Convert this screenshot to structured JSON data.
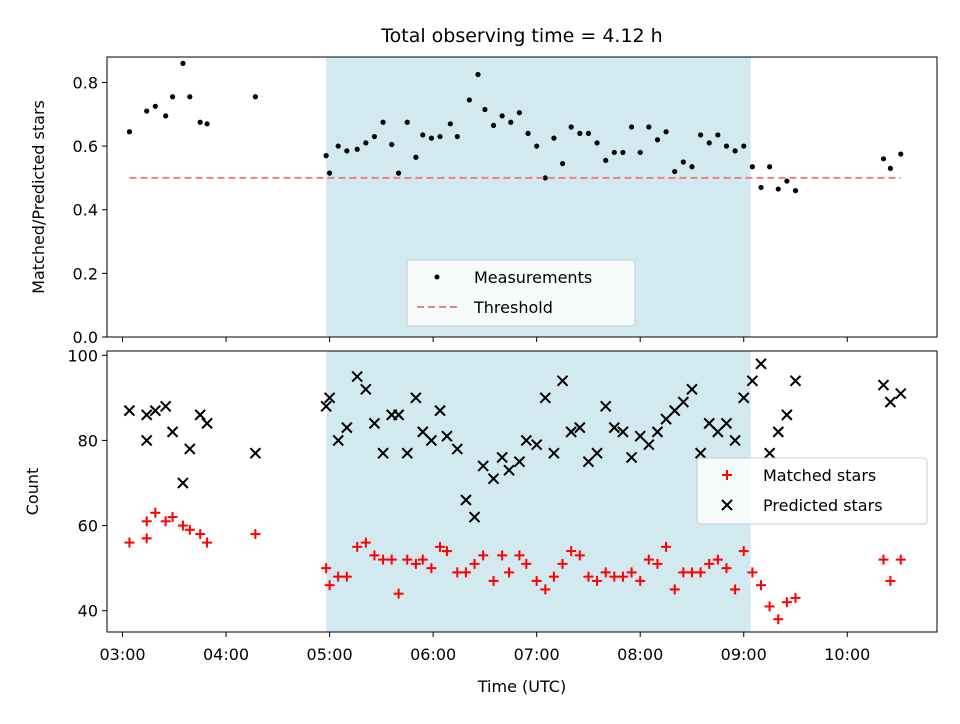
{
  "chart_data": [
    {
      "type": "scatter",
      "title": "Total observing time = 4.12 h",
      "ylabel": "Matched/Predicted stars",
      "xlabel": "",
      "ylim": [
        0,
        0.88
      ],
      "xlim": [
        "02:51",
        "10:52"
      ],
      "yticks": [
        "0.0",
        "0.2",
        "0.4",
        "0.6",
        "0.8"
      ],
      "shaded_interval": [
        "04:58",
        "09:04"
      ],
      "shade_color": "#d2e9f0",
      "legend_position": "lower center",
      "series": [
        {
          "name": "Measurements",
          "color": "#000000",
          "marker": "dot",
          "points": [
            [
              "03:04",
              0.645
            ],
            [
              "03:14",
              0.71
            ],
            [
              "03:19",
              0.725
            ],
            [
              "03:25",
              0.695
            ],
            [
              "03:29",
              0.755
            ],
            [
              "03:35",
              0.86
            ],
            [
              "03:39",
              0.755
            ],
            [
              "03:45",
              0.675
            ],
            [
              "03:49",
              0.67
            ],
            [
              "04:17",
              0.755
            ],
            [
              "04:58",
              0.57
            ],
            [
              "05:00",
              0.515
            ],
            [
              "05:05",
              0.6
            ],
            [
              "05:10",
              0.585
            ],
            [
              "05:16",
              0.59
            ],
            [
              "05:21",
              0.61
            ],
            [
              "05:26",
              0.63
            ],
            [
              "05:31",
              0.675
            ],
            [
              "05:36",
              0.605
            ],
            [
              "05:40",
              0.515
            ],
            [
              "05:45",
              0.675
            ],
            [
              "05:50",
              0.565
            ],
            [
              "05:54",
              0.635
            ],
            [
              "05:59",
              0.625
            ],
            [
              "06:04",
              0.63
            ],
            [
              "06:10",
              0.67
            ],
            [
              "06:14",
              0.63
            ],
            [
              "06:21",
              0.745
            ],
            [
              "06:26",
              0.825
            ],
            [
              "06:30",
              0.715
            ],
            [
              "06:35",
              0.665
            ],
            [
              "06:40",
              0.695
            ],
            [
              "06:45",
              0.675
            ],
            [
              "06:50",
              0.705
            ],
            [
              "06:55",
              0.64
            ],
            [
              "07:00",
              0.6
            ],
            [
              "07:05",
              0.5
            ],
            [
              "07:10",
              0.625
            ],
            [
              "07:15",
              0.545
            ],
            [
              "07:20",
              0.66
            ],
            [
              "07:25",
              0.64
            ],
            [
              "07:30",
              0.64
            ],
            [
              "07:35",
              0.61
            ],
            [
              "07:40",
              0.555
            ],
            [
              "07:45",
              0.58
            ],
            [
              "07:50",
              0.58
            ],
            [
              "07:55",
              0.66
            ],
            [
              "08:00",
              0.58
            ],
            [
              "08:05",
              0.66
            ],
            [
              "08:10",
              0.62
            ],
            [
              "08:15",
              0.645
            ],
            [
              "08:20",
              0.52
            ],
            [
              "08:25",
              0.55
            ],
            [
              "08:30",
              0.535
            ],
            [
              "08:35",
              0.635
            ],
            [
              "08:40",
              0.61
            ],
            [
              "08:45",
              0.635
            ],
            [
              "08:50",
              0.6
            ],
            [
              "08:55",
              0.585
            ],
            [
              "09:00",
              0.6
            ],
            [
              "09:05",
              0.535
            ],
            [
              "09:10",
              0.47
            ],
            [
              "09:15",
              0.535
            ],
            [
              "09:20",
              0.465
            ],
            [
              "09:25",
              0.49
            ],
            [
              "09:30",
              0.46
            ],
            [
              "10:21",
              0.56
            ],
            [
              "10:25",
              0.53
            ],
            [
              "10:31",
              0.575
            ]
          ]
        },
        {
          "name": "Threshold",
          "color": "#f08080",
          "style": "dashed",
          "points": [
            [
              "03:04",
              0.5
            ],
            [
              "10:31",
              0.5
            ]
          ]
        }
      ]
    },
    {
      "type": "scatter",
      "title": "",
      "ylabel": "Count",
      "xlabel": "Time (UTC)",
      "ylim": [
        35,
        101
      ],
      "xlim": [
        "02:51",
        "10:52"
      ],
      "yticks": [
        "40",
        "60",
        "80",
        "100"
      ],
      "xticks": [
        "03:00",
        "04:00",
        "05:00",
        "06:00",
        "07:00",
        "08:00",
        "09:00",
        "10:00"
      ],
      "shaded_interval": [
        "04:58",
        "09:04"
      ],
      "shade_color": "#d2e9f0",
      "legend_position": "center right",
      "series": [
        {
          "name": "Matched stars",
          "color": "#ff0000",
          "marker": "plus",
          "points": [
            [
              "03:04",
              56
            ],
            [
              "03:14",
              61
            ],
            [
              "03:14",
              57
            ],
            [
              "03:19",
              63
            ],
            [
              "03:25",
              61
            ],
            [
              "03:29",
              62
            ],
            [
              "03:35",
              60
            ],
            [
              "03:39",
              59
            ],
            [
              "03:45",
              58
            ],
            [
              "03:49",
              56
            ],
            [
              "04:17",
              58
            ],
            [
              "04:58",
              50
            ],
            [
              "05:00",
              46
            ],
            [
              "05:05",
              48
            ],
            [
              "05:10",
              48
            ],
            [
              "05:16",
              55
            ],
            [
              "05:21",
              56
            ],
            [
              "05:26",
              53
            ],
            [
              "05:31",
              52
            ],
            [
              "05:36",
              52
            ],
            [
              "05:40",
              44
            ],
            [
              "05:45",
              52
            ],
            [
              "05:50",
              51
            ],
            [
              "05:54",
              52
            ],
            [
              "05:59",
              50
            ],
            [
              "06:04",
              55
            ],
            [
              "06:08",
              54
            ],
            [
              "06:14",
              49
            ],
            [
              "06:19",
              49
            ],
            [
              "06:24",
              51
            ],
            [
              "06:29",
              53
            ],
            [
              "06:35",
              47
            ],
            [
              "06:40",
              53
            ],
            [
              "06:44",
              49
            ],
            [
              "06:50",
              53
            ],
            [
              "06:54",
              51
            ],
            [
              "07:00",
              47
            ],
            [
              "07:05",
              45
            ],
            [
              "07:10",
              48
            ],
            [
              "07:15",
              51
            ],
            [
              "07:20",
              54
            ],
            [
              "07:25",
              53
            ],
            [
              "07:30",
              48
            ],
            [
              "07:35",
              47
            ],
            [
              "07:40",
              49
            ],
            [
              "07:45",
              48
            ],
            [
              "07:50",
              48
            ],
            [
              "07:55",
              49
            ],
            [
              "08:00",
              47
            ],
            [
              "08:05",
              52
            ],
            [
              "08:10",
              51
            ],
            [
              "08:15",
              55
            ],
            [
              "08:20",
              45
            ],
            [
              "08:25",
              49
            ],
            [
              "08:30",
              49
            ],
            [
              "08:35",
              49
            ],
            [
              "08:40",
              51
            ],
            [
              "08:45",
              52
            ],
            [
              "08:50",
              50
            ],
            [
              "08:55",
              45
            ],
            [
              "09:00",
              54
            ],
            [
              "09:05",
              49
            ],
            [
              "09:10",
              46
            ],
            [
              "09:15",
              41
            ],
            [
              "09:20",
              38
            ],
            [
              "09:25",
              42
            ],
            [
              "09:30",
              43
            ],
            [
              "10:21",
              52
            ],
            [
              "10:25",
              47
            ],
            [
              "10:31",
              52
            ]
          ]
        },
        {
          "name": "Predicted stars",
          "color": "#000000",
          "marker": "x",
          "points": [
            [
              "03:04",
              87
            ],
            [
              "03:14",
              86
            ],
            [
              "03:14",
              80
            ],
            [
              "03:19",
              87
            ],
            [
              "03:25",
              88
            ],
            [
              "03:29",
              82
            ],
            [
              "03:35",
              70
            ],
            [
              "03:39",
              78
            ],
            [
              "03:45",
              86
            ],
            [
              "03:49",
              84
            ],
            [
              "04:17",
              77
            ],
            [
              "04:58",
              88
            ],
            [
              "05:00",
              90
            ],
            [
              "05:05",
              80
            ],
            [
              "05:10",
              83
            ],
            [
              "05:16",
              95
            ],
            [
              "05:21",
              92
            ],
            [
              "05:26",
              84
            ],
            [
              "05:31",
              77
            ],
            [
              "05:36",
              86
            ],
            [
              "05:40",
              86
            ],
            [
              "05:45",
              77
            ],
            [
              "05:50",
              90
            ],
            [
              "05:54",
              82
            ],
            [
              "05:59",
              80
            ],
            [
              "06:04",
              87
            ],
            [
              "06:08",
              81
            ],
            [
              "06:14",
              78
            ],
            [
              "06:19",
              66
            ],
            [
              "06:24",
              62
            ],
            [
              "06:29",
              74
            ],
            [
              "06:35",
              71
            ],
            [
              "06:40",
              76
            ],
            [
              "06:44",
              73
            ],
            [
              "06:50",
              75
            ],
            [
              "06:54",
              80
            ],
            [
              "07:00",
              79
            ],
            [
              "07:05",
              90
            ],
            [
              "07:10",
              77
            ],
            [
              "07:15",
              94
            ],
            [
              "07:20",
              82
            ],
            [
              "07:25",
              83
            ],
            [
              "07:30",
              75
            ],
            [
              "07:35",
              77
            ],
            [
              "07:40",
              88
            ],
            [
              "07:45",
              83
            ],
            [
              "07:50",
              82
            ],
            [
              "07:55",
              76
            ],
            [
              "08:00",
              81
            ],
            [
              "08:05",
              79
            ],
            [
              "08:10",
              82
            ],
            [
              "08:15",
              85
            ],
            [
              "08:20",
              87
            ],
            [
              "08:25",
              89
            ],
            [
              "08:30",
              92
            ],
            [
              "08:35",
              77
            ],
            [
              "08:40",
              84
            ],
            [
              "08:45",
              82
            ],
            [
              "08:50",
              84
            ],
            [
              "08:55",
              80
            ],
            [
              "09:00",
              90
            ],
            [
              "09:05",
              94
            ],
            [
              "09:10",
              98
            ],
            [
              "09:15",
              77
            ],
            [
              "09:20",
              82
            ],
            [
              "09:25",
              86
            ],
            [
              "09:30",
              94
            ],
            [
              "10:21",
              93
            ],
            [
              "10:25",
              89
            ],
            [
              "10:31",
              91
            ]
          ]
        }
      ]
    }
  ]
}
